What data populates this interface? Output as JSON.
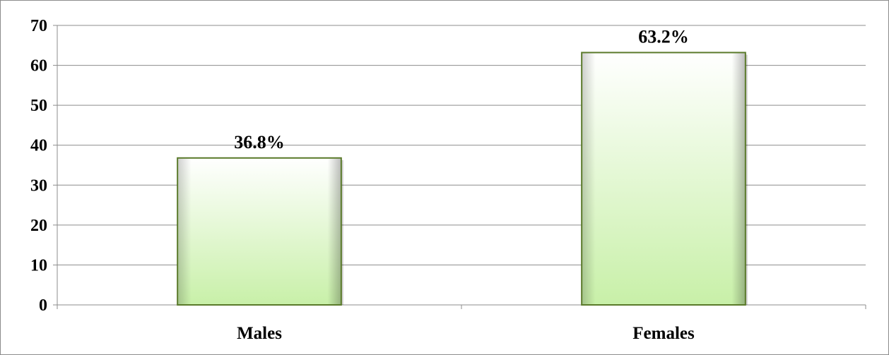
{
  "chart_data": {
    "type": "bar",
    "categories": [
      "Males",
      "Females"
    ],
    "values": [
      36.8,
      63.2
    ],
    "data_labels": [
      "36.8%",
      "63.2%"
    ],
    "y_ticks": [
      "0",
      "10",
      "20",
      "30",
      "40",
      "50",
      "60",
      "70"
    ],
    "ylim": [
      0,
      70
    ],
    "title": "",
    "xlabel": "",
    "ylabel": "",
    "grid": true,
    "legend": "none",
    "bar_colors": {
      "top": "#ffffff",
      "bottom": "#c8f0a8",
      "border": "#5a7a2a"
    }
  }
}
